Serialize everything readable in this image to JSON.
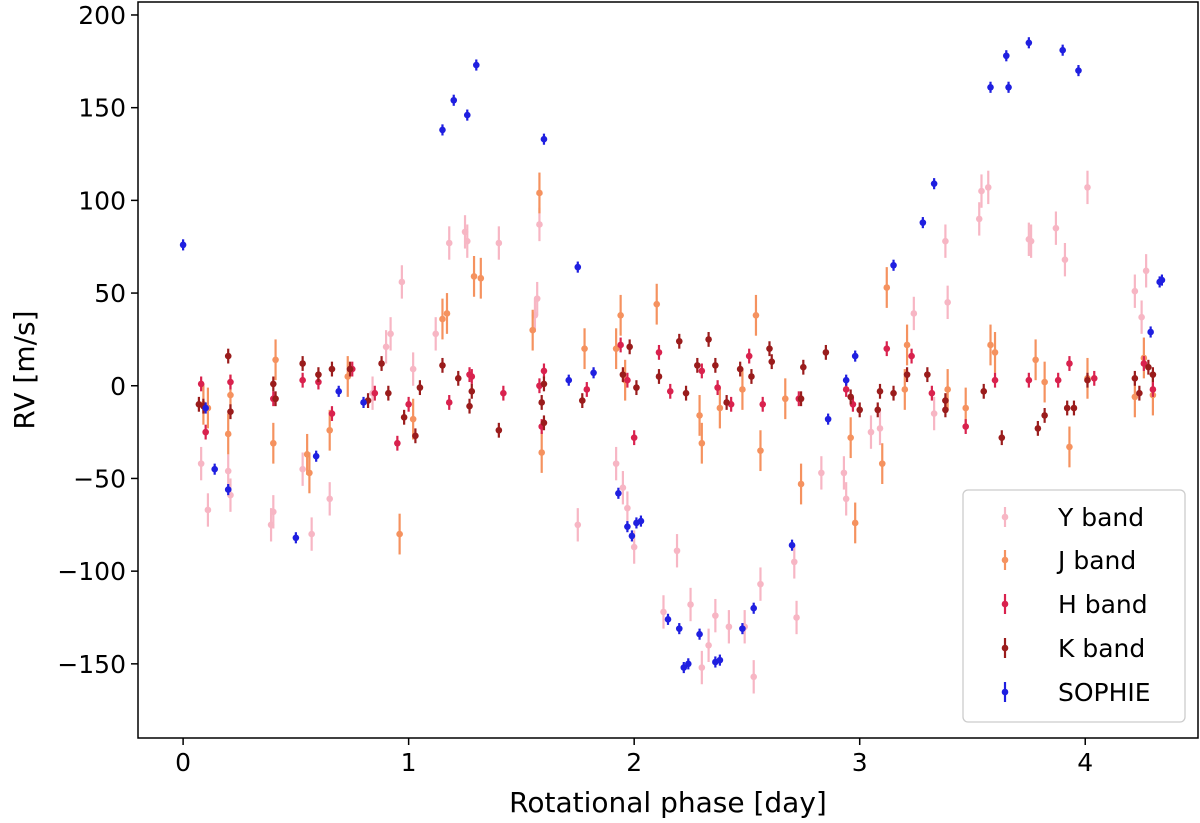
{
  "chart_data": {
    "type": "scatter",
    "title": "",
    "xlabel": "Rotational phase [day]",
    "ylabel": "RV [m/s]",
    "xlim": [
      -0.2,
      4.5
    ],
    "ylim": [
      -190,
      207
    ],
    "xticks": [
      0,
      1,
      2,
      3,
      4
    ],
    "yticks": [
      -150,
      -100,
      -50,
      0,
      50,
      100,
      150,
      200
    ],
    "xtick_labels": [
      "0",
      "1",
      "2",
      "3",
      "4"
    ],
    "ytick_labels": [
      "−150",
      "−100",
      "−50",
      "0",
      "50",
      "100",
      "150",
      "200"
    ],
    "grid": false,
    "legend_position": "bottom-right",
    "series": [
      {
        "name": "Y band",
        "color": "#f7b6c4",
        "err": 9,
        "points": [
          [
            0.08,
            -42
          ],
          [
            0.11,
            -67
          ],
          [
            0.2,
            -46
          ],
          [
            0.21,
            -59
          ],
          [
            0.39,
            -75
          ],
          [
            0.4,
            -68
          ],
          [
            0.53,
            -45
          ],
          [
            0.57,
            -80
          ],
          [
            0.65,
            -61
          ],
          [
            0.84,
            -4
          ],
          [
            0.9,
            21
          ],
          [
            0.92,
            28
          ],
          [
            0.97,
            56
          ],
          [
            1.02,
            9
          ],
          [
            1.12,
            28
          ],
          [
            1.18,
            77
          ],
          [
            1.25,
            83
          ],
          [
            1.26,
            78
          ],
          [
            1.4,
            77
          ],
          [
            1.56,
            38
          ],
          [
            1.57,
            47
          ],
          [
            1.58,
            87
          ],
          [
            1.75,
            -75
          ],
          [
            1.92,
            -42
          ],
          [
            1.95,
            -55
          ],
          [
            1.97,
            -66
          ],
          [
            2.0,
            -87
          ],
          [
            2.13,
            -122
          ],
          [
            2.19,
            -89
          ],
          [
            2.25,
            -118
          ],
          [
            2.3,
            -152
          ],
          [
            2.33,
            -140
          ],
          [
            2.36,
            -124
          ],
          [
            2.42,
            -130
          ],
          [
            2.49,
            -130
          ],
          [
            2.53,
            -157
          ],
          [
            2.56,
            -107
          ],
          [
            2.71,
            -95
          ],
          [
            2.72,
            -125
          ],
          [
            2.83,
            -47
          ],
          [
            2.93,
            -47
          ],
          [
            2.94,
            -61
          ],
          [
            3.05,
            -25
          ],
          [
            3.09,
            -23
          ],
          [
            3.24,
            39
          ],
          [
            3.33,
            -15
          ],
          [
            3.38,
            78
          ],
          [
            3.39,
            45
          ],
          [
            3.53,
            90
          ],
          [
            3.54,
            105
          ],
          [
            3.57,
            107
          ],
          [
            3.75,
            79
          ],
          [
            3.76,
            78
          ],
          [
            3.87,
            85
          ],
          [
            3.91,
            68
          ],
          [
            4.01,
            107
          ],
          [
            4.22,
            51
          ],
          [
            4.25,
            37
          ],
          [
            4.27,
            62
          ]
        ]
      },
      {
        "name": "J band",
        "color": "#f5925f",
        "err": 11,
        "points": [
          [
            0.09,
            -10
          ],
          [
            0.11,
            -12
          ],
          [
            0.2,
            -26
          ],
          [
            0.21,
            -5
          ],
          [
            0.4,
            -31
          ],
          [
            0.41,
            14
          ],
          [
            0.55,
            -37
          ],
          [
            0.56,
            -47
          ],
          [
            0.65,
            -24
          ],
          [
            0.73,
            5
          ],
          [
            0.96,
            -80
          ],
          [
            1.02,
            -18
          ],
          [
            1.15,
            36
          ],
          [
            1.17,
            39
          ],
          [
            1.29,
            59
          ],
          [
            1.32,
            58
          ],
          [
            1.55,
            30
          ],
          [
            1.58,
            104
          ],
          [
            1.59,
            -36
          ],
          [
            1.78,
            20
          ],
          [
            1.92,
            20
          ],
          [
            1.94,
            38
          ],
          [
            1.96,
            3
          ],
          [
            2.1,
            44
          ],
          [
            2.29,
            -16
          ],
          [
            2.3,
            -31
          ],
          [
            2.38,
            -12
          ],
          [
            2.48,
            -2
          ],
          [
            2.54,
            38
          ],
          [
            2.56,
            -35
          ],
          [
            2.67,
            -7
          ],
          [
            2.74,
            -53
          ],
          [
            2.96,
            -28
          ],
          [
            2.98,
            -74
          ],
          [
            3.1,
            -42
          ],
          [
            3.12,
            53
          ],
          [
            3.2,
            -2
          ],
          [
            3.21,
            22
          ],
          [
            3.39,
            -2
          ],
          [
            3.47,
            -12
          ],
          [
            3.58,
            22
          ],
          [
            3.6,
            18
          ],
          [
            3.78,
            14
          ],
          [
            3.82,
            2
          ],
          [
            3.93,
            -33
          ],
          [
            4.01,
            4
          ],
          [
            4.22,
            -6
          ],
          [
            4.26,
            15
          ],
          [
            4.3,
            -5
          ]
        ]
      },
      {
        "name": "H band",
        "color": "#d9224e",
        "err": 4,
        "points": [
          [
            0.08,
            1
          ],
          [
            0.1,
            -25
          ],
          [
            0.21,
            2
          ],
          [
            0.4,
            -7
          ],
          [
            0.53,
            3
          ],
          [
            0.6,
            2
          ],
          [
            0.66,
            -15
          ],
          [
            0.75,
            9
          ],
          [
            0.85,
            -4
          ],
          [
            0.95,
            -31
          ],
          [
            1.0,
            -10
          ],
          [
            1.18,
            -9
          ],
          [
            1.27,
            6
          ],
          [
            1.28,
            5
          ],
          [
            1.42,
            -4
          ],
          [
            1.58,
            0
          ],
          [
            1.59,
            -22
          ],
          [
            1.6,
            8
          ],
          [
            1.79,
            -2
          ],
          [
            1.94,
            22
          ],
          [
            1.97,
            3
          ],
          [
            2.0,
            -28
          ],
          [
            2.11,
            18
          ],
          [
            2.16,
            -3
          ],
          [
            2.3,
            8
          ],
          [
            2.37,
            -1
          ],
          [
            2.43,
            -10
          ],
          [
            2.51,
            16
          ],
          [
            2.57,
            -10
          ],
          [
            2.73,
            -7
          ],
          [
            2.94,
            -2
          ],
          [
            2.97,
            -10
          ],
          [
            3.12,
            20
          ],
          [
            3.23,
            16
          ],
          [
            3.32,
            -4
          ],
          [
            3.47,
            -22
          ],
          [
            3.6,
            3
          ],
          [
            3.75,
            3
          ],
          [
            3.88,
            3
          ],
          [
            3.93,
            12
          ],
          [
            4.04,
            4
          ],
          [
            4.26,
            12
          ],
          [
            4.3,
            -2
          ]
        ]
      },
      {
        "name": "K band",
        "color": "#9a1c1c",
        "err": 4,
        "points": [
          [
            0.07,
            -10
          ],
          [
            0.09,
            -11
          ],
          [
            0.2,
            16
          ],
          [
            0.21,
            -14
          ],
          [
            0.4,
            1
          ],
          [
            0.41,
            -7
          ],
          [
            0.53,
            12
          ],
          [
            0.6,
            6
          ],
          [
            0.66,
            9
          ],
          [
            0.74,
            9
          ],
          [
            0.82,
            -8
          ],
          [
            0.88,
            12
          ],
          [
            0.91,
            -4
          ],
          [
            0.98,
            -17
          ],
          [
            1.03,
            -27
          ],
          [
            1.05,
            -1
          ],
          [
            1.15,
            11
          ],
          [
            1.22,
            4
          ],
          [
            1.27,
            -11
          ],
          [
            1.28,
            -3
          ],
          [
            1.4,
            -24
          ],
          [
            1.59,
            -9
          ],
          [
            1.6,
            -20
          ],
          [
            1.6,
            1
          ],
          [
            1.77,
            -8
          ],
          [
            1.95,
            6
          ],
          [
            1.98,
            21
          ],
          [
            2.01,
            -1
          ],
          [
            2.11,
            5
          ],
          [
            2.2,
            24
          ],
          [
            2.23,
            -4
          ],
          [
            2.28,
            11
          ],
          [
            2.33,
            25
          ],
          [
            2.36,
            11
          ],
          [
            2.41,
            -9
          ],
          [
            2.47,
            9
          ],
          [
            2.52,
            5
          ],
          [
            2.6,
            20
          ],
          [
            2.61,
            13
          ],
          [
            2.74,
            -7
          ],
          [
            2.75,
            10
          ],
          [
            2.85,
            18
          ],
          [
            2.96,
            -6
          ],
          [
            3.0,
            -13
          ],
          [
            3.08,
            -13
          ],
          [
            3.09,
            -3
          ],
          [
            3.15,
            -4
          ],
          [
            3.21,
            6
          ],
          [
            3.3,
            6
          ],
          [
            3.38,
            -13
          ],
          [
            3.38,
            -8
          ],
          [
            3.55,
            -3
          ],
          [
            3.63,
            -28
          ],
          [
            3.79,
            -23
          ],
          [
            3.82,
            -16
          ],
          [
            3.92,
            -12
          ],
          [
            3.95,
            -12
          ],
          [
            4.01,
            3
          ],
          [
            4.22,
            4
          ],
          [
            4.24,
            -4
          ],
          [
            4.28,
            10
          ],
          [
            4.3,
            6
          ]
        ]
      },
      {
        "name": "SOPHIE",
        "color": "#1f1fe0",
        "err": 3,
        "points": [
          [
            0.0,
            76
          ],
          [
            0.1,
            -12
          ],
          [
            0.14,
            -45
          ],
          [
            0.2,
            -56
          ],
          [
            0.5,
            -82
          ],
          [
            0.59,
            -38
          ],
          [
            0.69,
            -3
          ],
          [
            0.8,
            -9
          ],
          [
            1.15,
            138
          ],
          [
            1.2,
            154
          ],
          [
            1.26,
            146
          ],
          [
            1.3,
            173
          ],
          [
            1.6,
            133
          ],
          [
            1.71,
            3
          ],
          [
            1.75,
            64
          ],
          [
            1.82,
            7
          ],
          [
            1.93,
            -58
          ],
          [
            1.97,
            -76
          ],
          [
            1.99,
            -81
          ],
          [
            2.01,
            -74
          ],
          [
            2.03,
            -73
          ],
          [
            2.15,
            -126
          ],
          [
            2.2,
            -131
          ],
          [
            2.22,
            -152
          ],
          [
            2.24,
            -150
          ],
          [
            2.29,
            -134
          ],
          [
            2.36,
            -149
          ],
          [
            2.38,
            -148
          ],
          [
            2.48,
            -131
          ],
          [
            2.53,
            -120
          ],
          [
            2.7,
            -86
          ],
          [
            2.86,
            -18
          ],
          [
            2.94,
            3
          ],
          [
            2.98,
            16
          ],
          [
            3.15,
            65
          ],
          [
            3.28,
            88
          ],
          [
            3.33,
            109
          ],
          [
            3.58,
            161
          ],
          [
            3.65,
            178
          ],
          [
            3.66,
            161
          ],
          [
            3.75,
            185
          ],
          [
            3.9,
            181
          ],
          [
            3.97,
            170
          ],
          [
            4.29,
            29
          ],
          [
            4.33,
            56
          ],
          [
            4.34,
            57
          ]
        ]
      }
    ]
  }
}
